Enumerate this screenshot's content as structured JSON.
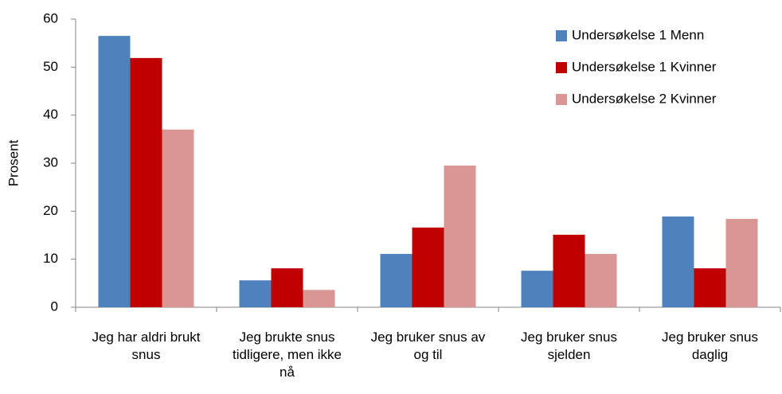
{
  "chart_data": {
    "type": "bar",
    "y_label": "Prosent",
    "categories": [
      "Jeg har aldri brukt snus",
      "Jeg brukte snus tidligere, men ikke nå",
      "Jeg bruker snus av og til",
      "Jeg bruker snus sjelden",
      "Jeg bruker snus daglig"
    ],
    "series": [
      {
        "name": "Undersøkelse 1 Menn",
        "color": "#4f81bd",
        "values": [
          56.5,
          5.6,
          11.1,
          7.6,
          18.9
        ]
      },
      {
        "name": "Undersøkelse 1 Kvinner",
        "color": "#c00000",
        "values": [
          51.9,
          8.1,
          16.6,
          15.1,
          8.1
        ]
      },
      {
        "name": "Undersøkelse 2 Kvinner",
        "color": "#d99694",
        "values": [
          37.0,
          3.6,
          29.5,
          11.1,
          18.4
        ]
      }
    ],
    "ylim": [
      0,
      60
    ],
    "yticks": [
      0,
      10,
      20,
      30,
      40,
      50,
      60
    ],
    "grid": false,
    "legend": "top-right"
  }
}
